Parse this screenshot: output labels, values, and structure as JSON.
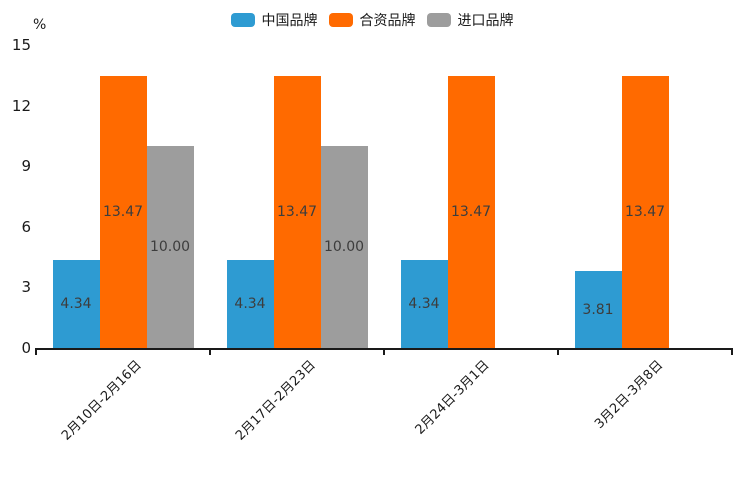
{
  "chart_data": {
    "type": "bar",
    "title": "",
    "categories": [
      "2月10日-2月16日",
      "2月17日-2月23日",
      "2月24日-3月1日",
      "3月2日-3月8日"
    ],
    "series": [
      {
        "name": "中国品牌",
        "color": "#2E9BD2",
        "values": [
          4.34,
          4.34,
          4.34,
          3.81
        ]
      },
      {
        "name": "合资品牌",
        "color": "#FF6A00",
        "values": [
          13.47,
          13.47,
          13.47,
          13.47
        ]
      },
      {
        "name": "进口品牌",
        "color": "#9D9D9D",
        "values": [
          10.0,
          10.0,
          null,
          null
        ]
      }
    ],
    "value_labels": [
      [
        "4.34",
        "13.47",
        "10.00"
      ],
      [
        "4.34",
        "13.47",
        "10.00"
      ],
      [
        "4.34",
        "13.47",
        null
      ],
      [
        "3.81",
        "13.47",
        null
      ]
    ],
    "ylabel": "%",
    "xlabel": "",
    "yticks": [
      0,
      3,
      6,
      9,
      12,
      15
    ],
    "ylim": [
      0,
      15
    ],
    "grid": false,
    "legend_position": "top",
    "value_label_color": "#3d3d3d",
    "axis_color": "#1a1a1a"
  }
}
